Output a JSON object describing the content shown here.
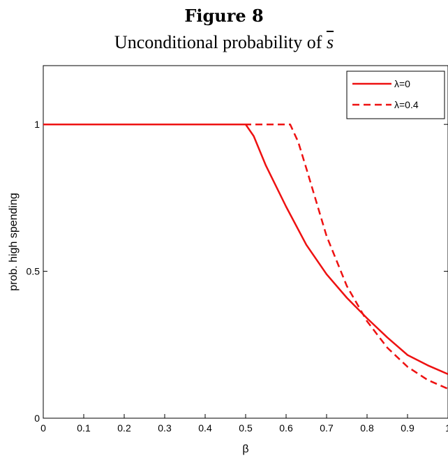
{
  "figure": {
    "label": "Figure 8",
    "subtitle_prefix": "Unconditional probability of",
    "subtitle_symbol": "s"
  },
  "chart_data": {
    "type": "line",
    "title": "Unconditional probability of s̄",
    "xlabel": "β",
    "ylabel": "prob. high spending",
    "xlim": [
      0,
      1
    ],
    "ylim": [
      0,
      1.2
    ],
    "x_ticks": [
      0,
      0.1,
      0.2,
      0.3,
      0.4,
      0.5,
      0.6,
      0.7,
      0.8,
      0.9,
      1
    ],
    "x_tick_labels": [
      "0",
      "0.1",
      "0.2",
      "0.3",
      "0.4",
      "0.5",
      "0.6",
      "0.7",
      "0.8",
      "0.9",
      "1"
    ],
    "y_ticks": [
      0,
      0.5,
      1
    ],
    "y_tick_labels": [
      "0",
      "0.5",
      "1"
    ],
    "grid": false,
    "legend_position": "top-right",
    "colors": {
      "series": "#ee1111"
    },
    "series": [
      {
        "name": "λ=0",
        "style": "solid",
        "x": [
          0,
          0.1,
          0.2,
          0.3,
          0.4,
          0.5,
          0.52,
          0.55,
          0.6,
          0.65,
          0.7,
          0.75,
          0.8,
          0.85,
          0.9,
          0.95,
          1.0
        ],
        "y": [
          1,
          1,
          1,
          1,
          1,
          1,
          0.96,
          0.86,
          0.72,
          0.59,
          0.49,
          0.41,
          0.34,
          0.275,
          0.215,
          0.18,
          0.15
        ]
      },
      {
        "name": "λ=0.4",
        "style": "dashed",
        "x": [
          0,
          0.1,
          0.2,
          0.3,
          0.4,
          0.5,
          0.6,
          0.61,
          0.63,
          0.65,
          0.7,
          0.75,
          0.8,
          0.85,
          0.9,
          0.95,
          1.0
        ],
        "y": [
          1,
          1,
          1,
          1,
          1,
          1,
          1,
          1,
          0.94,
          0.85,
          0.62,
          0.45,
          0.33,
          0.24,
          0.175,
          0.13,
          0.1
        ]
      }
    ]
  }
}
